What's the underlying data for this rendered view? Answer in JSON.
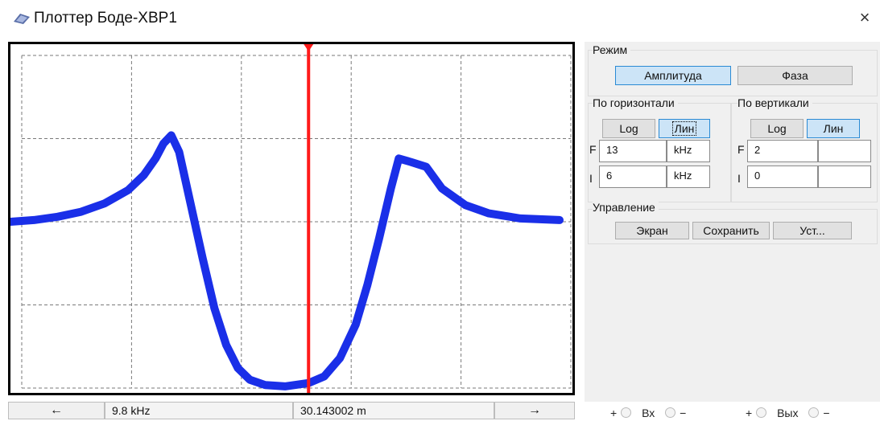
{
  "window": {
    "title": "Плоттер Боде-XBP1",
    "icon": "bode-plotter-icon",
    "close_glyph": "×"
  },
  "colors": {
    "curve": "#1a2fe8",
    "cursor": "#ff1a1a",
    "grid": "#7a7a7a",
    "panel": "#f0f0f0",
    "active_button": "#cce4f7"
  },
  "plot": {
    "grid": true,
    "horizontal_scale": "Лин",
    "vertical_scale": "Лин",
    "f_initial_khz": 6,
    "f_final_khz": 13,
    "v_initial": 0,
    "v_final": 2,
    "cursor_frequency_khz": 9.8,
    "curve_points": [
      [
        6.0,
        1.0
      ],
      [
        6.3,
        1.01
      ],
      [
        6.6,
        1.03
      ],
      [
        6.9,
        1.06
      ],
      [
        7.2,
        1.11
      ],
      [
        7.5,
        1.19
      ],
      [
        7.7,
        1.28
      ],
      [
        7.85,
        1.38
      ],
      [
        7.95,
        1.47
      ],
      [
        8.05,
        1.52
      ],
      [
        8.15,
        1.42
      ],
      [
        8.3,
        1.1
      ],
      [
        8.45,
        0.78
      ],
      [
        8.6,
        0.48
      ],
      [
        8.75,
        0.26
      ],
      [
        8.9,
        0.12
      ],
      [
        9.05,
        0.05
      ],
      [
        9.25,
        0.018
      ],
      [
        9.5,
        0.01
      ],
      [
        9.8,
        0.03
      ],
      [
        10.0,
        0.07
      ],
      [
        10.2,
        0.18
      ],
      [
        10.4,
        0.38
      ],
      [
        10.55,
        0.62
      ],
      [
        10.7,
        0.9
      ],
      [
        10.85,
        1.2
      ],
      [
        10.95,
        1.38
      ],
      [
        11.1,
        1.36
      ],
      [
        11.3,
        1.33
      ],
      [
        11.5,
        1.2
      ],
      [
        11.8,
        1.1
      ],
      [
        12.1,
        1.05
      ],
      [
        12.5,
        1.02
      ],
      [
        13.0,
        1.01
      ]
    ]
  },
  "readout": {
    "left_arrow": "←",
    "frequency": "9.8 kHz",
    "value": "30.143002 m",
    "right_arrow": "→"
  },
  "panel": {
    "mode": {
      "title": "Режим",
      "amplitude": "Амплитуда",
      "phase": "Фаза",
      "selected": "Амплитуда"
    },
    "horizontal": {
      "title": "По горизонтали",
      "log": "Log",
      "lin": "Лин",
      "f_label": "F",
      "f_value": "13",
      "f_unit": "kHz",
      "i_label": "I",
      "i_value": "6",
      "i_unit": "kHz"
    },
    "vertical": {
      "title": "По вертикали",
      "log": "Log",
      "lin": "Лин",
      "f_label": "F",
      "f_value": "2",
      "f_unit": "",
      "i_label": "I",
      "i_value": "0",
      "i_unit": ""
    },
    "control": {
      "title": "Управление",
      "screen": "Экран",
      "save": "Сохранить",
      "settings": "Уст..."
    }
  },
  "terminals": {
    "plus": "+",
    "minus": "−",
    "in_label": "Вх",
    "out_label": "Вых"
  }
}
